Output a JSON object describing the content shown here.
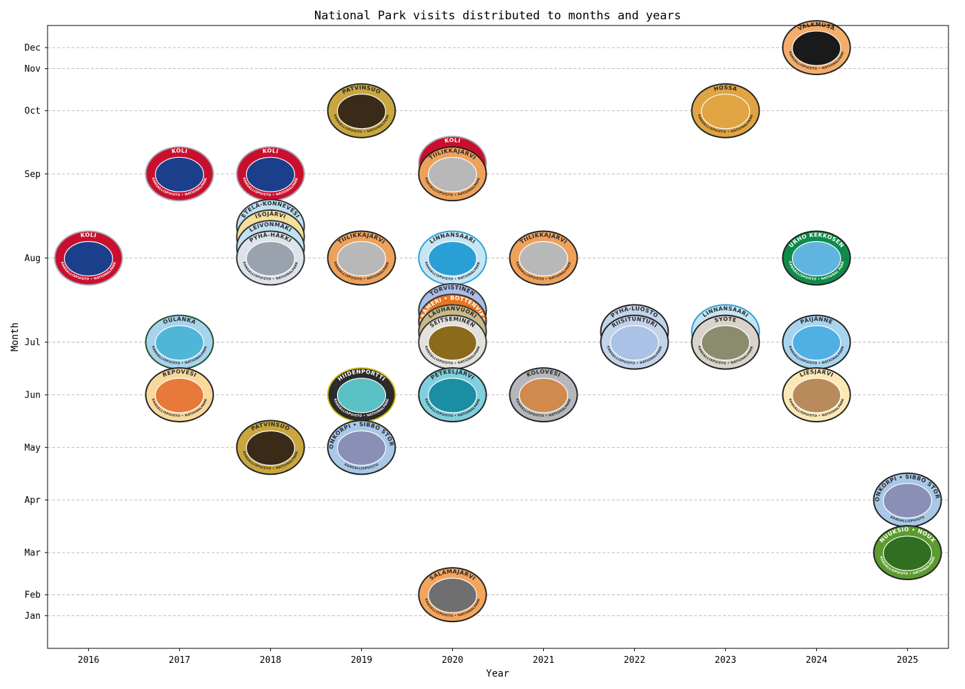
{
  "chart_data": {
    "type": "scatter",
    "title": "National Park visits distributed to months and years",
    "xlabel": "Year",
    "ylabel": "Month",
    "xlim": [
      2015.55,
      2025.45
    ],
    "ylim": [
      0.58,
      12.42
    ],
    "grid": "y-dashed",
    "x_ticks": [
      2016,
      2017,
      2018,
      2019,
      2020,
      2021,
      2022,
      2023,
      2024,
      2025
    ],
    "y_ticks": [
      {
        "value": 12,
        "label": "Dec"
      },
      {
        "value": 11.6,
        "label": "Nov"
      },
      {
        "value": 10.8,
        "label": "Oct"
      },
      {
        "value": 9.6,
        "label": "Sep"
      },
      {
        "value": 8.0,
        "label": "Aug"
      },
      {
        "value": 6.4,
        "label": "Jul"
      },
      {
        "value": 5.4,
        "label": "Jun"
      },
      {
        "value": 4.4,
        "label": "May"
      },
      {
        "value": 3.4,
        "label": "Apr"
      },
      {
        "value": 2.4,
        "label": "Mar"
      },
      {
        "value": 1.6,
        "label": "Feb"
      },
      {
        "value": 1.2,
        "label": "Jan"
      }
    ],
    "points": [
      {
        "x": 2016,
        "y": 8.0,
        "name": "KOLI",
        "badge_color": "#c8102e",
        "ring_color": "#a8a8b0",
        "center_color": "#1c3f8c",
        "sub_text": "KANSALLISPUISTO • NATIONALPARK"
      },
      {
        "x": 2017,
        "y": 9.6,
        "name": "KOLI",
        "badge_color": "#c8102e",
        "ring_color": "#a8a8b0",
        "center_color": "#1c3f8c",
        "sub_text": "KANSALLISPUISTO • NATIONALPARK"
      },
      {
        "x": 2017,
        "y": 6.4,
        "name": "OULANKA",
        "badge_color": "#a7d3ec",
        "ring_color": "#1d4e2b",
        "center_color": "#4fb6d7",
        "sub_text": "KANSALLISPUISTO • NATIONALPARK"
      },
      {
        "x": 2017,
        "y": 5.4,
        "name": "REPOVESI",
        "badge_color": "#f9d89c",
        "ring_color": "#222222",
        "center_color": "#e7793a",
        "sub_text": "KANSALLISPUISTO • NATIONALPARK"
      },
      {
        "x": 2018,
        "y": 9.6,
        "name": "KOLI",
        "badge_color": "#c8102e",
        "ring_color": "#a8a8b0",
        "center_color": "#1c3f8c",
        "sub_text": "KANSALLISPUISTO • NATIONALPARK"
      },
      {
        "x": 2018,
        "y": 8.6,
        "name": "ETELÄ-KONNEVESI",
        "badge_color": "#bfe1f2",
        "ring_color": "#333333",
        "center_color": "#88c5e5",
        "sub_text": "KANSALLISPUISTO • NATIONALPARK"
      },
      {
        "x": 2018,
        "y": 8.4,
        "name": "ISOJÄRVI",
        "badge_color": "#f5df9a",
        "ring_color": "#333333",
        "center_color": "#d6b45d",
        "sub_text": "KANSALLISPUISTO • NATIONALPARK"
      },
      {
        "x": 2018,
        "y": 8.2,
        "name": "LEIVONMÄKI",
        "badge_color": "#bfe1f2",
        "ring_color": "#333333",
        "center_color": "#6fb0d5",
        "sub_text": "KANSALLISPUISTO • NATIONALPARK"
      },
      {
        "x": 2018,
        "y": 8.0,
        "name": "PYHÄ-HÄKKI",
        "badge_color": "#dde3ea",
        "ring_color": "#333333",
        "center_color": "#9aa3ad",
        "sub_text": "KANSALLISPUISTO • NATIONALPARK"
      },
      {
        "x": 2018,
        "y": 4.4,
        "name": "PATVINSUO",
        "badge_color": "#c9a73e",
        "ring_color": "#222222",
        "center_color": "#3a2a18",
        "sub_text": "KANSALLISPUISTO • NATIONALPARK"
      },
      {
        "x": 2019,
        "y": 10.8,
        "name": "PATVINSUO",
        "badge_color": "#c9a73e",
        "ring_color": "#222222",
        "center_color": "#3a2a18",
        "sub_text": "KANSALLISPUISTO • NATIONALPARK"
      },
      {
        "x": 2019,
        "y": 8.0,
        "name": "TIILIKKAJÄRVI",
        "badge_color": "#eea15a",
        "ring_color": "#222222",
        "center_color": "#b8b8b8",
        "sub_text": "KANSALLISPUISTO • NATIONALPARK"
      },
      {
        "x": 2019,
        "y": 5.4,
        "name": "HIIDENPORTTI",
        "badge_color": "#2b2b2b",
        "ring_color": "#d4c21c",
        "center_color": "#5ac1c4",
        "sub_text": "KANSALLISPUISTO • NATIONALPARK"
      },
      {
        "x": 2019,
        "y": 4.4,
        "name": "SIPOONKORPI • SIBBO STORSKOG",
        "badge_color": "#a9c8e8",
        "ring_color": "#222222",
        "center_color": "#8a8fb5",
        "sub_text": "KANSALLISPUISTO"
      },
      {
        "x": 2020,
        "y": 9.8,
        "name": "KOLI",
        "badge_color": "#c8102e",
        "ring_color": "#a8a8b0",
        "center_color": "#1c3f8c",
        "sub_text": "KANSALLISPUISTO • NATIONALPARK"
      },
      {
        "x": 2020,
        "y": 9.6,
        "name": "TIILIKKAJÄRVI",
        "badge_color": "#eea15a",
        "ring_color": "#222222",
        "center_color": "#b8b8b8",
        "sub_text": "KANSALLISPUISTO • NATIONALPARK"
      },
      {
        "x": 2020,
        "y": 8.0,
        "name": "LINNANSAARI",
        "badge_color": "#c6e5f4",
        "ring_color": "#2a9fd6",
        "center_color": "#2a9fd6",
        "sub_text": "KANSALLISPUISTO • NATIONALPARK"
      },
      {
        "x": 2020,
        "y": 7.0,
        "name": "TORVISTINEN",
        "badge_color": "#a9bde8",
        "ring_color": "#333333",
        "center_color": "#7d92c9",
        "sub_text": "KANSALLISPUISTO • NATIONALPARK"
      },
      {
        "x": 2020,
        "y": 6.8,
        "name": "PERÄMERI • BOTTENVIKEN",
        "badge_color": "#e87722",
        "ring_color": "#333333",
        "center_color": "#3b6fb6",
        "sub_text": "KANSALLISPUISTO • NATIONALPARK"
      },
      {
        "x": 2020,
        "y": 6.6,
        "name": "LAUHANVUORI",
        "badge_color": "#c7b98a",
        "ring_color": "#333333",
        "center_color": "#6e8b3d",
        "sub_text": "KANSALLISPUISTO • NATIONALPARK"
      },
      {
        "x": 2020,
        "y": 6.4,
        "name": "SEITSEMINEN",
        "badge_color": "#e3e1dc",
        "ring_color": "#333333",
        "center_color": "#8b6a1c",
        "sub_text": "KANSALLISPUISTO • NATIONALPARK"
      },
      {
        "x": 2020,
        "y": 5.4,
        "name": "PETKELJÄRVI",
        "badge_color": "#7fd0de",
        "ring_color": "#222222",
        "center_color": "#1a8fa3",
        "sub_text": "KANSALLISPUISTO • NATIONALPARK"
      },
      {
        "x": 2020,
        "y": 1.6,
        "name": "SALAMAJÄRVI",
        "badge_color": "#f4a55c",
        "ring_color": "#222222",
        "center_color": "#6f6f6f",
        "sub_text": "KANSALLISPUISTO • NATIONALPARK"
      },
      {
        "x": 2021,
        "y": 8.0,
        "name": "TIILIKKAJÄRVI",
        "badge_color": "#eea15a",
        "ring_color": "#222222",
        "center_color": "#b8b8b8",
        "sub_text": "KANSALLISPUISTO • NATIONALPARK"
      },
      {
        "x": 2021,
        "y": 5.4,
        "name": "KOLOVESI",
        "badge_color": "#b4b8bc",
        "ring_color": "#222222",
        "center_color": "#d08a4e",
        "sub_text": "KANSALLISPUISTO • NATIONALPARK"
      },
      {
        "x": 2022,
        "y": 6.6,
        "name": "PYHÄ-LUOSTO",
        "badge_color": "#c3d3ea",
        "ring_color": "#222222",
        "center_color": "#8ea8d2",
        "sub_text": "KANSALLISPUISTO • NATIONALPARK"
      },
      {
        "x": 2022,
        "y": 6.4,
        "name": "RIISITUNTURI",
        "badge_color": "#c3d3ea",
        "ring_color": "#222222",
        "center_color": "#a9c2e6",
        "sub_text": "KANSALLISPUISTO • NATIONALPARK"
      },
      {
        "x": 2023,
        "y": 10.8,
        "name": "HOSSA",
        "badge_color": "#e0a442",
        "ring_color": "#222222",
        "center_color": "#e0a442",
        "sub_text": "KANSALLISPUISTO • NATIONALPARK"
      },
      {
        "x": 2023,
        "y": 6.6,
        "name": "LINNANSAARI",
        "badge_color": "#c6e5f4",
        "ring_color": "#2a9fd6",
        "center_color": "#2a9fd6",
        "sub_text": "KANSALLISPUISTO • NATIONALPARK"
      },
      {
        "x": 2023,
        "y": 6.4,
        "name": "SYÖTE",
        "badge_color": "#d9d3ca",
        "ring_color": "#222222",
        "center_color": "#8b8b6e",
        "sub_text": "KANSALLISPUISTO • NATIONALPARK"
      },
      {
        "x": 2024,
        "y": 12.0,
        "name": "VALKMUSA",
        "badge_color": "#f4ad6a",
        "ring_color": "#222222",
        "center_color": "#1a1a1a",
        "sub_text": "KANSALLISPUISTO • NATIONALPARK"
      },
      {
        "x": 2024,
        "y": 8.0,
        "name": "URHO KEKKOSEN",
        "badge_color": "#0f8a4a",
        "ring_color": "#222222",
        "center_color": "#5fb5e0",
        "sub_text": "KANSALLISPUISTO • NATIONAL PARK"
      },
      {
        "x": 2024,
        "y": 6.4,
        "name": "PÄIJÄNNE",
        "badge_color": "#a9d4ef",
        "ring_color": "#222222",
        "center_color": "#4fb0e4",
        "sub_text": "KANSALLISPUISTO • NATIONALPARK"
      },
      {
        "x": 2024,
        "y": 5.4,
        "name": "LIESJÄRVI",
        "badge_color": "#fbe8b5",
        "ring_color": "#222222",
        "center_color": "#b98a5c",
        "sub_text": "KANSALLISPUISTO • NATIONALPARK"
      },
      {
        "x": 2025,
        "y": 3.4,
        "name": "SIPOONKORPI • SIBBO STORSKOG",
        "badge_color": "#a9c8e8",
        "ring_color": "#222222",
        "center_color": "#8a8fb5",
        "sub_text": "KANSALLISPUISTO"
      },
      {
        "x": 2025,
        "y": 2.4,
        "name": "NUUKSIO • NOUX",
        "badge_color": "#5b9b2f",
        "ring_color": "#222222",
        "center_color": "#2f6f1f",
        "sub_text": "KANSALLISPUISTO • NATIONALPARK"
      }
    ]
  }
}
